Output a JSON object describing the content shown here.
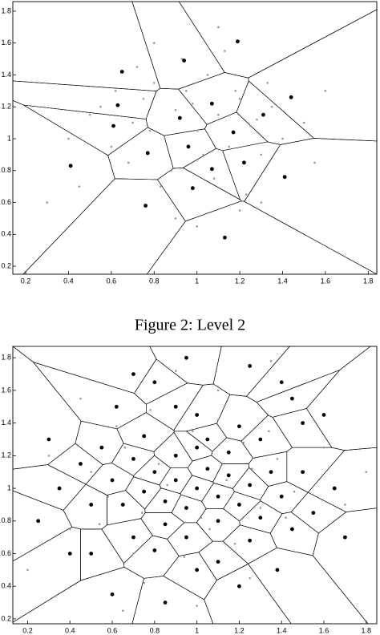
{
  "caption": "Figure 2: Level 2",
  "chart_data": [
    {
      "type": "scatter",
      "voronoi": true,
      "xlim": [
        0.14,
        1.84
      ],
      "ylim": [
        0.15,
        1.86
      ],
      "xticks": [
        0.2,
        0.4,
        0.6,
        0.8,
        1,
        1.2,
        1.4,
        1.6,
        1.8
      ],
      "yticks": [
        0.2,
        0.4,
        0.6,
        0.8,
        1,
        1.2,
        1.4,
        1.6,
        1.8
      ],
      "series": [
        {
          "color": "#999999",
          "x": [
            0.55,
            0.62,
            0.7,
            0.75,
            0.8,
            0.85,
            0.9,
            0.95,
            1.0,
            1.05,
            1.1,
            1.15,
            1.2,
            1.25,
            1.3,
            1.35,
            1.4,
            0.68,
            0.78,
            0.88,
            0.98,
            1.08,
            1.18,
            1.28,
            0.72,
            0.83,
            0.93,
            1.03,
            1.13,
            1.23,
            1.33,
            0.6,
            0.5,
            0.45,
            1.5,
            1.55,
            1.6,
            0.4,
            0.3,
            0.9,
            1.0,
            1.1,
            1.2,
            0.8,
            1.3
          ],
          "values": [
            1.2,
            1.3,
            1.1,
            1.25,
            1.35,
            1.0,
            1.18,
            1.3,
            1.05,
            1.4,
            1.15,
            0.95,
            1.25,
            1.08,
            0.9,
            1.2,
            1.0,
            0.85,
            1.05,
            0.8,
            1.22,
            0.75,
            1.3,
            1.12,
            1.45,
            0.7,
            1.5,
            0.9,
            1.55,
            0.65,
            1.35,
            0.95,
            1.15,
            0.7,
            1.1,
            0.85,
            1.3,
            1.0,
            0.6,
            0.5,
            0.45,
            1.7,
            0.55,
            1.6,
            0.6
          ]
        },
        {
          "color": "#000000",
          "x": [
            1.19,
            0.94,
            0.65,
            0.63,
            1.07,
            1.44,
            1.31,
            0.92,
            0.61,
            1.17,
            0.96,
            0.77,
            0.41,
            1.07,
            1.22,
            1.41,
            0.98,
            0.76,
            1.13
          ],
          "values": [
            1.61,
            1.49,
            1.42,
            1.21,
            1.22,
            1.26,
            1.15,
            1.13,
            1.08,
            1.04,
            0.95,
            0.91,
            0.83,
            0.81,
            0.85,
            0.76,
            0.69,
            0.58,
            0.38
          ]
        }
      ]
    },
    {
      "type": "scatter",
      "voronoi": true,
      "xlim": [
        0.13,
        1.85
      ],
      "ylim": [
        0.17,
        1.87
      ],
      "xticks": [
        0.2,
        0.4,
        0.6,
        0.8,
        1,
        1.2,
        1.4,
        1.6,
        1.8
      ],
      "yticks": [
        0.2,
        0.4,
        0.6,
        0.8,
        1,
        1.2,
        1.4,
        1.6,
        1.8
      ],
      "series": [
        {
          "color": "#999999",
          "x": [
            0.5,
            0.58,
            0.66,
            0.74,
            0.82,
            0.9,
            0.98,
            1.06,
            1.14,
            1.22,
            1.3,
            1.38,
            1.46,
            0.54,
            0.62,
            0.7,
            0.78,
            0.86,
            0.94,
            1.02,
            1.1,
            1.18,
            1.26,
            1.34,
            1.42,
            0.3,
            0.4,
            1.6,
            1.7,
            0.2,
            1.8,
            0.9,
            1.0,
            1.1,
            0.75,
            1.25,
            0.45,
            1.55,
            0.65,
            1.35
          ],
          "values": [
            1.1,
            0.95,
            1.25,
            0.85,
            1.15,
            0.9,
            1.35,
            0.75,
            1.05,
            1.28,
            0.88,
            1.18,
            0.98,
            0.78,
            1.38,
            0.6,
            1.48,
            1.02,
            0.58,
            0.82,
            1.42,
            0.66,
            1.12,
            1.35,
            0.82,
            1.2,
            0.75,
            1.25,
            0.9,
            0.5,
            1.1,
            1.72,
            0.28,
            1.6,
            0.42,
            0.45,
            1.55,
            0.6,
            0.25,
            1.78
          ]
        },
        {
          "color": "#000000",
          "x": [
            1.0,
            0.9,
            1.1,
            0.95,
            1.05,
            0.85,
            1.15,
            0.8,
            1.2,
            0.9,
            1.1,
            1.0,
            0.75,
            1.25,
            0.7,
            1.3,
            0.85,
            1.15,
            0.95,
            1.05,
            0.65,
            1.35,
            0.6,
            1.4,
            0.75,
            1.25,
            0.8,
            1.2,
            1.0,
            0.55,
            1.45,
            0.7,
            1.3,
            0.9,
            1.1,
            0.5,
            1.5,
            0.45,
            1.55,
            0.62,
            1.38,
            0.35,
            1.65,
            0.5,
            1.5,
            0.8,
            1.2,
            1.0,
            0.3,
            1.7,
            0.4,
            1.6,
            0.25,
            0.6,
            1.4,
            0.95,
            1.25,
            0.7,
            1.45,
            0.85
          ],
          "values": [
            1.0,
            1.05,
            0.95,
            0.88,
            1.12,
            0.92,
            1.08,
            1.1,
            0.9,
            1.2,
            0.8,
            1.25,
            0.98,
            1.02,
            1.18,
            0.82,
            0.78,
            1.22,
            0.7,
            1.3,
            0.9,
            1.1,
            1.05,
            0.95,
            1.32,
            0.68,
            0.62,
            1.38,
            1.45,
            1.25,
            0.75,
            0.7,
            1.3,
            1.5,
            0.55,
            0.9,
            1.1,
            1.15,
            0.85,
            1.5,
            0.5,
            1.0,
            1.0,
            0.6,
            1.4,
            1.65,
            0.4,
            0.5,
            1.3,
            0.7,
            0.6,
            1.45,
            0.8,
            0.35,
            1.65,
            1.8,
            1.75,
            1.7,
            1.55,
            0.3
          ]
        }
      ]
    }
  ]
}
